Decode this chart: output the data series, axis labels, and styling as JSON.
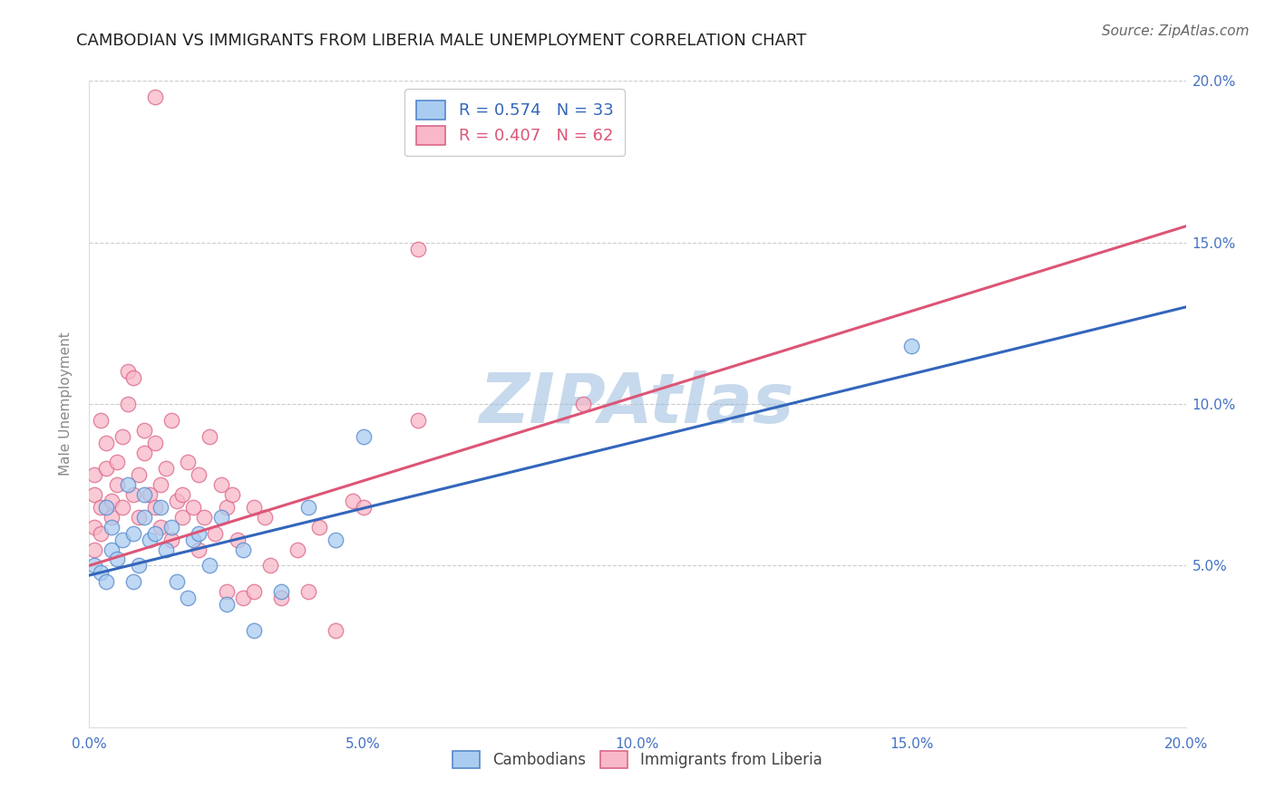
{
  "title": "CAMBODIAN VS IMMIGRANTS FROM LIBERIA MALE UNEMPLOYMENT CORRELATION CHART",
  "source": "Source: ZipAtlas.com",
  "ylabel": "Male Unemployment",
  "xmin": 0.0,
  "xmax": 0.2,
  "ymin": 0.0,
  "ymax": 0.2,
  "xticks": [
    0.0,
    0.05,
    0.1,
    0.15,
    0.2
  ],
  "xtick_labels": [
    "0.0%",
    "5.0%",
    "10.0%",
    "15.0%",
    "20.0%"
  ],
  "yticks_right": [
    0.05,
    0.1,
    0.15,
    0.2
  ],
  "ytick_labels_right": [
    "5.0%",
    "10.0%",
    "15.0%",
    "20.0%"
  ],
  "cambodian_fill": "#aaccf0",
  "cambodian_edge": "#5588cc",
  "liberia_fill": "#f8b8c8",
  "liberia_edge": "#dd6688",
  "cambodian_line_color": "#3366bb",
  "liberia_line_color": "#dd5577",
  "cambodian_R": 0.574,
  "cambodian_N": 33,
  "liberia_R": 0.407,
  "liberia_N": 62,
  "watermark": "ZIPAtlas",
  "watermark_color": "#99bbdd",
  "background_color": "#ffffff",
  "grid_color": "#cccccc",
  "legend_label_1": "Cambodians",
  "legend_label_2": "Immigrants from Liberia",
  "title_color": "#222222",
  "axis_tick_color": "#4472c4",
  "source_color": "#666666",
  "cambodian_scatter": [
    [
      0.001,
      0.05
    ],
    [
      0.002,
      0.048
    ],
    [
      0.003,
      0.045
    ],
    [
      0.003,
      0.068
    ],
    [
      0.004,
      0.055
    ],
    [
      0.004,
      0.062
    ],
    [
      0.005,
      0.052
    ],
    [
      0.006,
      0.058
    ],
    [
      0.007,
      0.075
    ],
    [
      0.008,
      0.06
    ],
    [
      0.008,
      0.045
    ],
    [
      0.009,
      0.05
    ],
    [
      0.01,
      0.065
    ],
    [
      0.01,
      0.072
    ],
    [
      0.011,
      0.058
    ],
    [
      0.012,
      0.06
    ],
    [
      0.013,
      0.068
    ],
    [
      0.014,
      0.055
    ],
    [
      0.015,
      0.062
    ],
    [
      0.016,
      0.045
    ],
    [
      0.018,
      0.04
    ],
    [
      0.019,
      0.058
    ],
    [
      0.02,
      0.06
    ],
    [
      0.022,
      0.05
    ],
    [
      0.024,
      0.065
    ],
    [
      0.025,
      0.038
    ],
    [
      0.028,
      0.055
    ],
    [
      0.03,
      0.03
    ],
    [
      0.035,
      0.042
    ],
    [
      0.04,
      0.068
    ],
    [
      0.045,
      0.058
    ],
    [
      0.05,
      0.09
    ],
    [
      0.15,
      0.118
    ]
  ],
  "liberia_scatter": [
    [
      0.001,
      0.062
    ],
    [
      0.001,
      0.055
    ],
    [
      0.001,
      0.072
    ],
    [
      0.001,
      0.078
    ],
    [
      0.002,
      0.068
    ],
    [
      0.002,
      0.095
    ],
    [
      0.002,
      0.06
    ],
    [
      0.003,
      0.08
    ],
    [
      0.003,
      0.088
    ],
    [
      0.004,
      0.07
    ],
    [
      0.004,
      0.065
    ],
    [
      0.005,
      0.075
    ],
    [
      0.005,
      0.082
    ],
    [
      0.006,
      0.09
    ],
    [
      0.006,
      0.068
    ],
    [
      0.007,
      0.1
    ],
    [
      0.007,
      0.11
    ],
    [
      0.008,
      0.108
    ],
    [
      0.008,
      0.072
    ],
    [
      0.009,
      0.078
    ],
    [
      0.009,
      0.065
    ],
    [
      0.01,
      0.085
    ],
    [
      0.01,
      0.092
    ],
    [
      0.011,
      0.072
    ],
    [
      0.012,
      0.068
    ],
    [
      0.012,
      0.088
    ],
    [
      0.013,
      0.075
    ],
    [
      0.013,
      0.062
    ],
    [
      0.014,
      0.08
    ],
    [
      0.015,
      0.058
    ],
    [
      0.015,
      0.095
    ],
    [
      0.016,
      0.07
    ],
    [
      0.017,
      0.065
    ],
    [
      0.017,
      0.072
    ],
    [
      0.018,
      0.082
    ],
    [
      0.019,
      0.068
    ],
    [
      0.02,
      0.078
    ],
    [
      0.02,
      0.055
    ],
    [
      0.021,
      0.065
    ],
    [
      0.022,
      0.09
    ],
    [
      0.023,
      0.06
    ],
    [
      0.024,
      0.075
    ],
    [
      0.025,
      0.068
    ],
    [
      0.025,
      0.042
    ],
    [
      0.026,
      0.072
    ],
    [
      0.027,
      0.058
    ],
    [
      0.028,
      0.04
    ],
    [
      0.03,
      0.042
    ],
    [
      0.03,
      0.068
    ],
    [
      0.032,
      0.065
    ],
    [
      0.033,
      0.05
    ],
    [
      0.035,
      0.04
    ],
    [
      0.038,
      0.055
    ],
    [
      0.04,
      0.042
    ],
    [
      0.042,
      0.062
    ],
    [
      0.045,
      0.03
    ],
    [
      0.048,
      0.07
    ],
    [
      0.05,
      0.068
    ],
    [
      0.012,
      0.195
    ],
    [
      0.06,
      0.095
    ],
    [
      0.06,
      0.148
    ],
    [
      0.09,
      0.1
    ]
  ]
}
